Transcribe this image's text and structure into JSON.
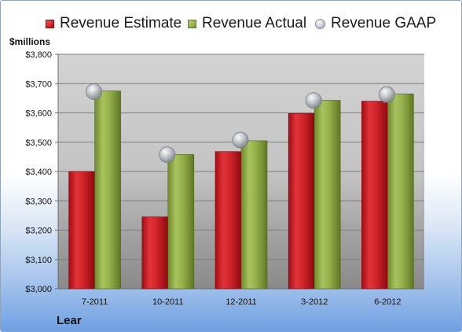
{
  "legend": {
    "estimate": "Revenue Estimate",
    "actual": "Revenue Actual",
    "gaap": "Revenue GAAP"
  },
  "units_label": "$millions",
  "company_label": "Lear",
  "colors": {
    "estimate": "#cc1e24",
    "actual": "#93ad4a",
    "gaap": "#b5b9c0"
  },
  "chart_data": {
    "type": "bar",
    "categories": [
      "7-2011",
      "10-2011",
      "12-2011",
      "3-2012",
      "6-2012"
    ],
    "series": [
      {
        "name": "Revenue Estimate",
        "kind": "bar",
        "values": [
          3400,
          3245,
          3468,
          3598,
          3640
        ]
      },
      {
        "name": "Revenue Actual",
        "kind": "bar",
        "values": [
          3675,
          3458,
          3505,
          3643,
          3665
        ]
      },
      {
        "name": "Revenue GAAP",
        "kind": "marker",
        "values": [
          3675,
          3460,
          3510,
          3645,
          3665
        ]
      }
    ],
    "ylabel": "$millions",
    "ylim": [
      3000,
      3800
    ],
    "ytick_step": 100,
    "ytick_labels": [
      "$3,000",
      "$3,100",
      "$3,200",
      "$3,300",
      "$3,400",
      "$3,500",
      "$3,600",
      "$3,700",
      "$3,800"
    ],
    "grid": true,
    "legend_position": "top"
  }
}
